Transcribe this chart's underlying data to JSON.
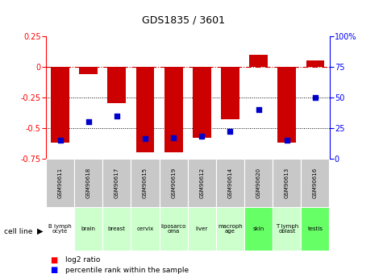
{
  "title": "GDS1835 / 3601",
  "samples": [
    "GSM90611",
    "GSM90618",
    "GSM90617",
    "GSM90615",
    "GSM90619",
    "GSM90612",
    "GSM90614",
    "GSM90620",
    "GSM90613",
    "GSM90616"
  ],
  "cell_lines": [
    "B lymph\nocyte",
    "brain",
    "breast",
    "cervix",
    "liposarco\noma",
    "liver",
    "macroph\nage",
    "skin",
    "T lymph\noblast",
    "testis"
  ],
  "cell_line_colors": [
    "#ffffff",
    "#ccffcc",
    "#ccffcc",
    "#ccffcc",
    "#ccffcc",
    "#ccffcc",
    "#ccffcc",
    "#66ff66",
    "#ccffcc",
    "#66ff66"
  ],
  "log2_ratio": [
    -0.62,
    -0.06,
    -0.3,
    -0.7,
    -0.7,
    -0.58,
    -0.43,
    0.1,
    -0.62,
    0.05
  ],
  "percentile_rank": [
    15,
    30,
    35,
    16,
    17,
    18,
    22,
    40,
    15,
    50
  ],
  "ylim_left": [
    -0.75,
    0.25
  ],
  "ylim_right": [
    0,
    100
  ],
  "yticks_left": [
    -0.75,
    -0.5,
    -0.25,
    0,
    0.25
  ],
  "yticks_right": [
    0,
    25,
    50,
    75,
    100
  ],
  "hlines": [
    -0.25,
    -0.5
  ],
  "bar_color": "#cc0000",
  "dot_color": "#0000cc",
  "dash_color": "#cc0000",
  "bar_width": 0.65,
  "background_color": "#ffffff",
  "gsm_row_color": "#c8c8c8",
  "title_fontsize": 9,
  "tick_fontsize": 7,
  "label_fontsize": 6
}
